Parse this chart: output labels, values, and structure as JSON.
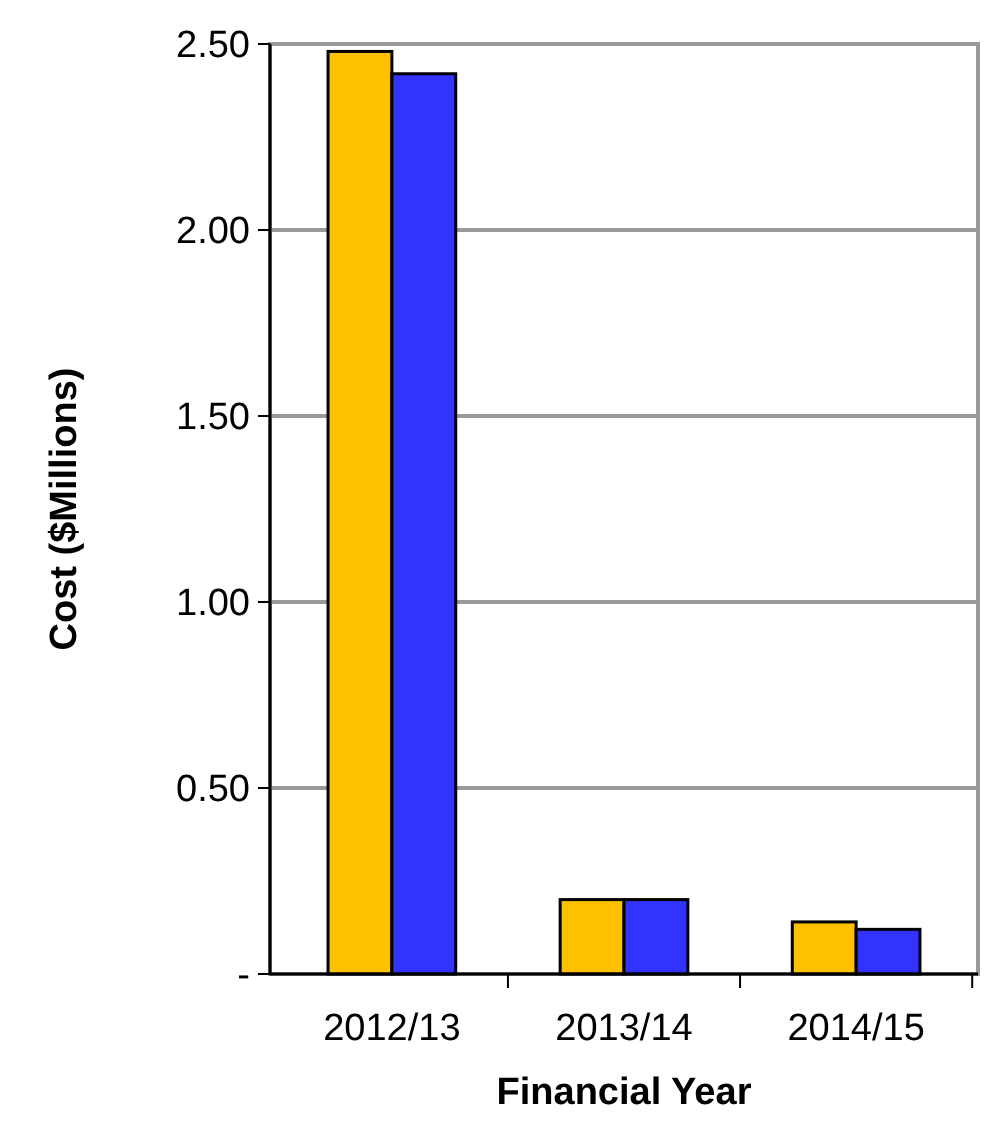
{
  "chart_data": {
    "type": "bar",
    "xlabel": "Financial Year",
    "ylabel": "Cost ($Millions)",
    "categories": [
      "2012/13",
      "2013/14",
      "2014/15"
    ],
    "series": [
      {
        "color": "#ffc000",
        "values": [
          2.48,
          0.2,
          0.14
        ]
      },
      {
        "color": "#3333ff",
        "values": [
          2.42,
          0.2,
          0.12
        ]
      }
    ],
    "ylim": [
      0,
      2.5
    ],
    "yticks": [
      {
        "value": 0,
        "label": "-"
      },
      {
        "value": 0.5,
        "label": "0.50"
      },
      {
        "value": 1,
        "label": "1.00"
      },
      {
        "value": 1.5,
        "label": "1.50"
      },
      {
        "value": 2,
        "label": "2.00"
      },
      {
        "value": 2.5,
        "label": "2.50"
      }
    ],
    "grid": "y"
  }
}
